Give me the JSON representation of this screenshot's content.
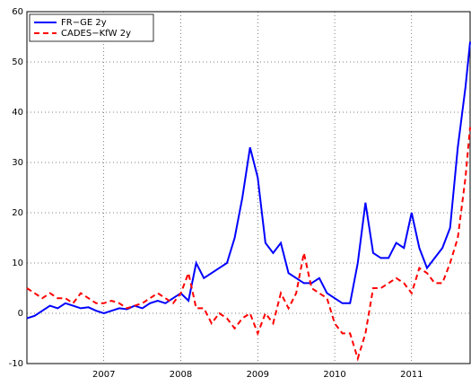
{
  "chart_data": {
    "type": "line",
    "x": [
      2006.0,
      2006.1,
      2006.2,
      2006.3,
      2006.4,
      2006.5,
      2006.6,
      2006.7,
      2006.8,
      2006.9,
      2007.0,
      2007.1,
      2007.2,
      2007.3,
      2007.4,
      2007.5,
      2007.6,
      2007.7,
      2007.8,
      2007.9,
      2008.0,
      2008.1,
      2008.2,
      2008.3,
      2008.4,
      2008.5,
      2008.6,
      2008.7,
      2008.8,
      2008.9,
      2009.0,
      2009.1,
      2009.2,
      2009.3,
      2009.4,
      2009.5,
      2009.6,
      2009.7,
      2009.8,
      2009.9,
      2010.0,
      2010.1,
      2010.2,
      2010.3,
      2010.4,
      2010.5,
      2010.6,
      2010.7,
      2010.8,
      2010.9,
      2011.0,
      2011.1,
      2011.2,
      2011.3,
      2011.4,
      2011.5,
      2011.6,
      2011.7,
      2011.76
    ],
    "series": [
      {
        "name": "FR−GE 2y",
        "color": "#0000ff",
        "linestyle": "solid",
        "values": [
          -1,
          -0.5,
          0.5,
          1.5,
          1,
          2,
          1.5,
          1,
          1.2,
          0.5,
          0,
          0.5,
          1,
          0.8,
          1.5,
          1,
          2,
          2.5,
          2,
          3,
          4,
          2.5,
          10,
          7,
          8,
          9,
          10,
          15,
          23,
          33,
          27,
          14,
          12,
          14,
          8,
          7,
          6,
          6,
          7,
          4,
          3,
          2,
          2,
          10,
          22,
          12,
          11,
          11,
          14,
          13,
          20,
          13,
          9,
          11,
          13,
          17,
          33,
          45,
          54
        ]
      },
      {
        "name": "CADES−KfW 2y",
        "color": "#ff0000",
        "linestyle": "dashed",
        "values": [
          5,
          4,
          3,
          4,
          3,
          3,
          2,
          4,
          3,
          2,
          2,
          2.5,
          2,
          1,
          1.5,
          2,
          3,
          4,
          3,
          2,
          4,
          8,
          1,
          1,
          -2,
          0,
          -1,
          -3,
          -1,
          0,
          -4,
          0,
          -2,
          4,
          1,
          4,
          12,
          5,
          4,
          3,
          -2,
          -4,
          -4,
          -9,
          -4,
          5,
          5,
          6,
          7,
          6,
          4,
          9,
          8,
          6,
          6,
          10,
          15,
          27,
          37
        ]
      }
    ],
    "xlim": [
      2006.0,
      2011.76
    ],
    "xticks": [
      2007,
      2008,
      2009,
      2010,
      2011
    ],
    "ylim": [
      -10,
      60
    ],
    "yticks": [
      -10,
      0,
      10,
      20,
      30,
      40,
      50,
      60
    ],
    "grid": true,
    "legend": "upper left"
  }
}
